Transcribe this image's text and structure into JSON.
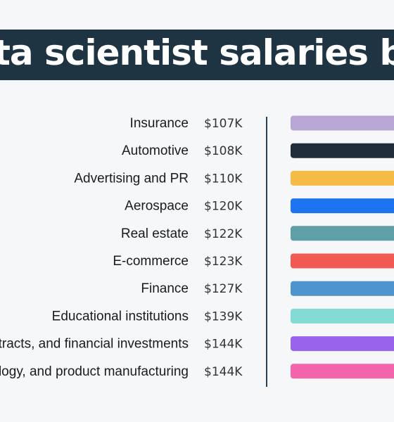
{
  "title": "ta scientist salaries by indus",
  "colors": {
    "title_bg": "#1f3443",
    "title_fg": "#ffffff",
    "axis": "#2c4355"
  },
  "chart_data": {
    "type": "bar",
    "orientation": "horizontal",
    "title": "ta scientist salaries by indus",
    "categories": [
      "Insurance",
      "Automotive",
      "Advertising and PR",
      "Aerospace",
      "Real estate",
      "E-commerce",
      "Finance",
      "Educational institutions",
      "contracts, and financial investments",
      "nology, and product manufacturing"
    ],
    "value_labels": [
      "$107K",
      "$108K",
      "$110K",
      "$120K",
      "$122K",
      "$123K",
      "$127K",
      "$139K",
      "$144K",
      "$144K"
    ],
    "values": [
      107,
      108,
      110,
      120,
      122,
      123,
      127,
      139,
      144,
      144
    ],
    "unit": "$K",
    "bar_colors": [
      "#b7a6d6",
      "#1f2d3a",
      "#f6bb47",
      "#1c74f0",
      "#5f9fa8",
      "#ef5b52",
      "#4e94cf",
      "#83dbd6",
      "#9a63ec",
      "#f265ac"
    ],
    "legend": "none",
    "grid": false
  }
}
